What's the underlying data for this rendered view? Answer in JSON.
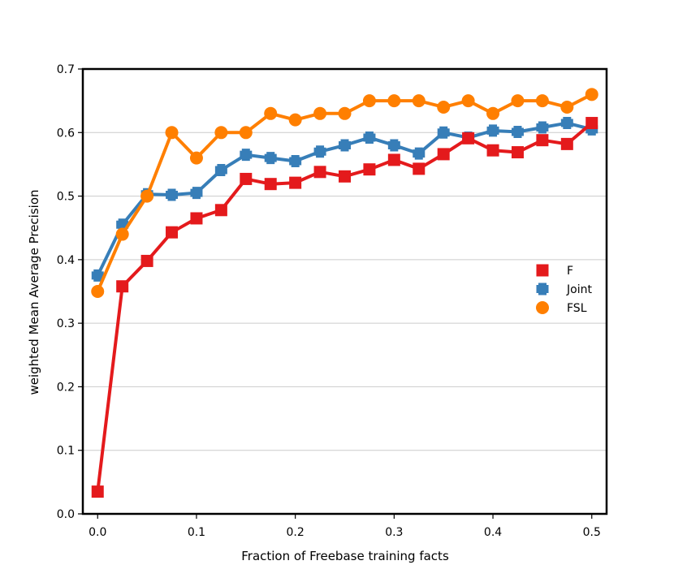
{
  "chart_data": {
    "type": "line",
    "title": "",
    "xlabel": "Fraction of Freebase training facts",
    "ylabel": "weighted Mean Average Precision",
    "xlim": [
      -0.015,
      0.515
    ],
    "ylim": [
      0.0,
      0.7
    ],
    "xticks": [
      0.0,
      0.1,
      0.2,
      0.3,
      0.4,
      0.5
    ],
    "xtick_labels": [
      "0.0",
      "0.1",
      "0.2",
      "0.3",
      "0.4",
      "0.5"
    ],
    "yticks": [
      0.0,
      0.1,
      0.2,
      0.3,
      0.4,
      0.5,
      0.6,
      0.7
    ],
    "ytick_labels": [
      "0.0",
      "0.1",
      "0.2",
      "0.3",
      "0.4",
      "0.5",
      "0.6",
      "0.7"
    ],
    "grid": "horizontal",
    "legend_position": "center-right",
    "x": [
      0.0,
      0.025,
      0.05,
      0.075,
      0.1,
      0.125,
      0.15,
      0.175,
      0.2,
      0.225,
      0.25,
      0.275,
      0.3,
      0.325,
      0.35,
      0.375,
      0.4,
      0.425,
      0.45,
      0.475,
      0.5
    ],
    "series": [
      {
        "name": "Joint",
        "color": "#377eb8",
        "marker": "plus",
        "values": [
          0.375,
          0.455,
          0.503,
          0.502,
          0.505,
          0.541,
          0.565,
          0.56,
          0.555,
          0.57,
          0.58,
          0.592,
          0.58,
          0.567,
          0.6,
          0.592,
          0.603,
          0.601,
          0.608,
          0.615,
          0.605
        ]
      },
      {
        "name": "F",
        "color": "#e41a1c",
        "marker": "square",
        "values": [
          0.035,
          0.358,
          0.398,
          0.443,
          0.465,
          0.478,
          0.527,
          0.519,
          0.521,
          0.538,
          0.531,
          0.542,
          0.557,
          0.543,
          0.566,
          0.591,
          0.572,
          0.569,
          0.588,
          0.582,
          0.615
        ]
      },
      {
        "name": "FSL",
        "color": "#ff7f00",
        "marker": "circle",
        "values": [
          0.35,
          0.44,
          0.5,
          0.6,
          0.56,
          0.6,
          0.6,
          0.63,
          0.62,
          0.63,
          0.63,
          0.65,
          0.65,
          0.65,
          0.64,
          0.65,
          0.63,
          0.65,
          0.65,
          0.64,
          0.66
        ]
      }
    ],
    "legend_order": [
      "F",
      "Joint",
      "FSL"
    ]
  }
}
